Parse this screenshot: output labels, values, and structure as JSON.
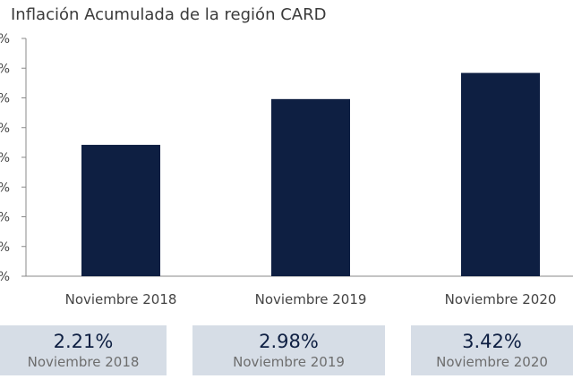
{
  "chart_data": {
    "type": "bar",
    "title": "Inflación Acumulada de la región CARD",
    "categories": [
      "Noviembre 2018",
      "Noviembre 2019",
      "Noviembre 2020"
    ],
    "values": [
      2.21,
      2.98,
      3.42
    ],
    "ylim": [
      0,
      4.0
    ],
    "yticks": [
      0.0,
      0.5,
      1.0,
      1.5,
      2.0,
      2.5,
      3.0,
      3.5,
      4.0
    ],
    "ytick_labels": [
      "%",
      "%",
      "%",
      "%",
      "%",
      "%",
      "%",
      "%",
      "%"
    ],
    "bar_color": "#0e1f42",
    "grid": false
  },
  "cards": [
    {
      "value": "2.21%",
      "label": "Noviembre 2018"
    },
    {
      "value": "2.98%",
      "label": "Noviembre 2019"
    },
    {
      "value": "3.42%",
      "label": "Noviembre 2020"
    }
  ],
  "colors": {
    "bar": "#0e1f42",
    "card_bg": "#d6dde6",
    "axis": "#888888"
  }
}
